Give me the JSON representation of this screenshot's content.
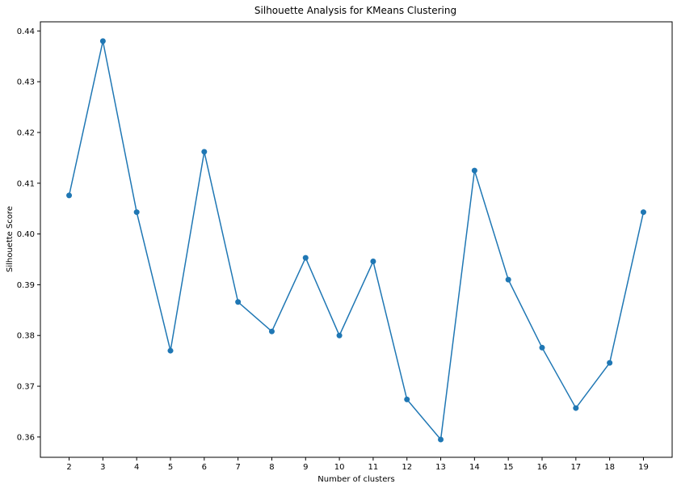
{
  "chart_data": {
    "type": "line",
    "title": "Silhouette Analysis for KMeans Clustering",
    "xlabel": "Number of clusters",
    "ylabel": "Silhouette Score",
    "x": [
      2,
      3,
      4,
      5,
      6,
      7,
      8,
      9,
      10,
      11,
      12,
      13,
      14,
      15,
      16,
      17,
      18,
      19
    ],
    "series": [
      {
        "values": [
          0.4076,
          0.438,
          0.4043,
          0.377,
          0.4162,
          0.3866,
          0.3808,
          0.3953,
          0.38,
          0.3946,
          0.3674,
          0.3595,
          0.4125,
          0.391,
          0.3776,
          0.3657,
          0.3746,
          0.4043
        ],
        "color": "#1f77b4",
        "marker": "circle"
      }
    ],
    "xticks": [
      "2",
      "3",
      "4",
      "5",
      "6",
      "7",
      "8",
      "9",
      "10",
      "11",
      "12",
      "13",
      "14",
      "15",
      "16",
      "17",
      "18",
      "19"
    ],
    "yticks": [
      "0.36",
      "0.37",
      "0.38",
      "0.39",
      "0.40",
      "0.41",
      "0.42",
      "0.43",
      "0.44"
    ],
    "xlim": [
      1.15,
      19.85
    ],
    "ylim": [
      0.356,
      0.4418
    ],
    "grid": false,
    "legend": "none"
  }
}
